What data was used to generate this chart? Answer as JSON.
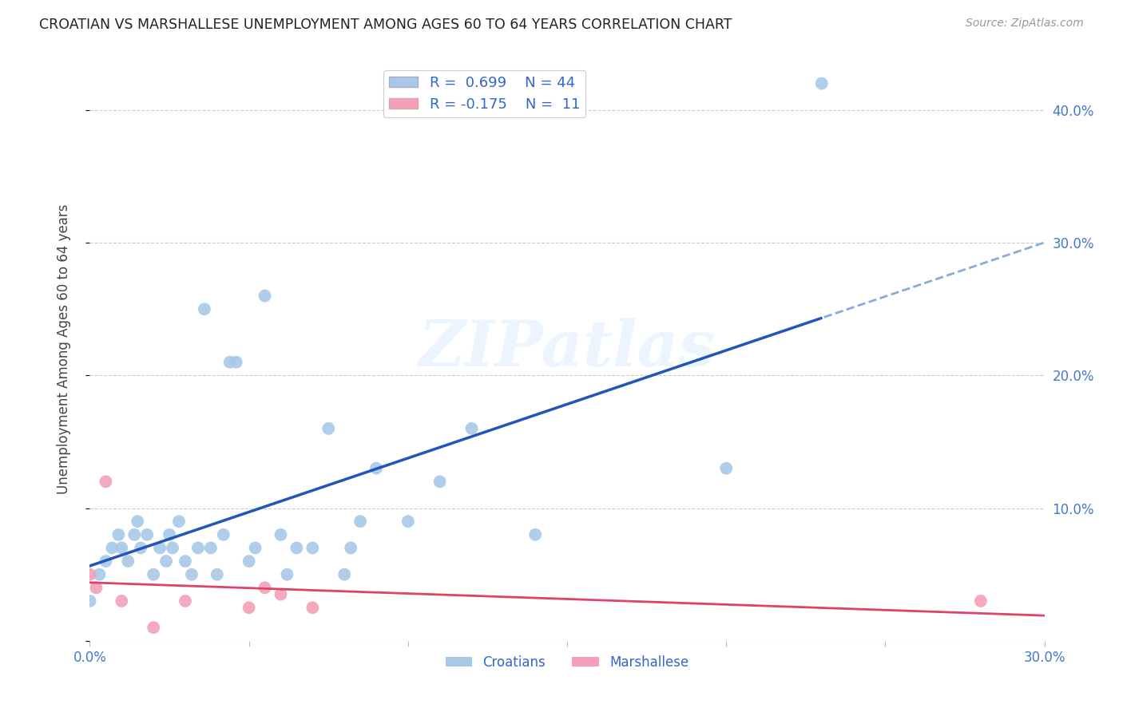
{
  "title": "CROATIAN VS MARSHALLESE UNEMPLOYMENT AMONG AGES 60 TO 64 YEARS CORRELATION CHART",
  "source": "Source: ZipAtlas.com",
  "ylabel": "Unemployment Among Ages 60 to 64 years",
  "xlim": [
    0.0,
    0.3
  ],
  "ylim": [
    0.0,
    0.44
  ],
  "xticks": [
    0.0,
    0.05,
    0.1,
    0.15,
    0.2,
    0.25,
    0.3
  ],
  "yticks": [
    0.0,
    0.1,
    0.2,
    0.3,
    0.4
  ],
  "xtick_labels": [
    "0.0%",
    "",
    "",
    "",
    "",
    "",
    "30.0%"
  ],
  "right_ytick_labels": [
    "",
    "10.0%",
    "20.0%",
    "30.0%",
    "40.0%"
  ],
  "croatian_x": [
    0.0,
    0.003,
    0.005,
    0.007,
    0.009,
    0.01,
    0.012,
    0.014,
    0.015,
    0.016,
    0.018,
    0.02,
    0.022,
    0.024,
    0.025,
    0.026,
    0.028,
    0.03,
    0.032,
    0.034,
    0.036,
    0.038,
    0.04,
    0.042,
    0.044,
    0.046,
    0.05,
    0.052,
    0.055,
    0.06,
    0.062,
    0.065,
    0.07,
    0.075,
    0.08,
    0.082,
    0.085,
    0.09,
    0.1,
    0.11,
    0.12,
    0.14,
    0.2,
    0.23
  ],
  "croatian_y": [
    0.03,
    0.05,
    0.06,
    0.07,
    0.08,
    0.07,
    0.06,
    0.08,
    0.09,
    0.07,
    0.08,
    0.05,
    0.07,
    0.06,
    0.08,
    0.07,
    0.09,
    0.06,
    0.05,
    0.07,
    0.25,
    0.07,
    0.05,
    0.08,
    0.21,
    0.21,
    0.06,
    0.07,
    0.26,
    0.08,
    0.05,
    0.07,
    0.07,
    0.16,
    0.05,
    0.07,
    0.09,
    0.13,
    0.09,
    0.12,
    0.16,
    0.08,
    0.13,
    0.42
  ],
  "marshallese_x": [
    0.0,
    0.002,
    0.005,
    0.01,
    0.02,
    0.03,
    0.05,
    0.055,
    0.06,
    0.07,
    0.28
  ],
  "marshallese_y": [
    0.05,
    0.04,
    0.12,
    0.03,
    0.01,
    0.03,
    0.025,
    0.04,
    0.035,
    0.025,
    0.03
  ],
  "croatian_color": "#a8c8e8",
  "marshallese_color": "#f4a0b8",
  "croatian_line_color": "#2255bb",
  "marshallese_line_color": "#dd4466",
  "dashed_line_color": "#88aadd",
  "R_croatian": 0.699,
  "N_croatian": 44,
  "R_marshallese": -0.175,
  "N_marshallese": 11,
  "watermark": "ZIPatlas",
  "background_color": "#ffffff",
  "grid_color": "#cccccc"
}
